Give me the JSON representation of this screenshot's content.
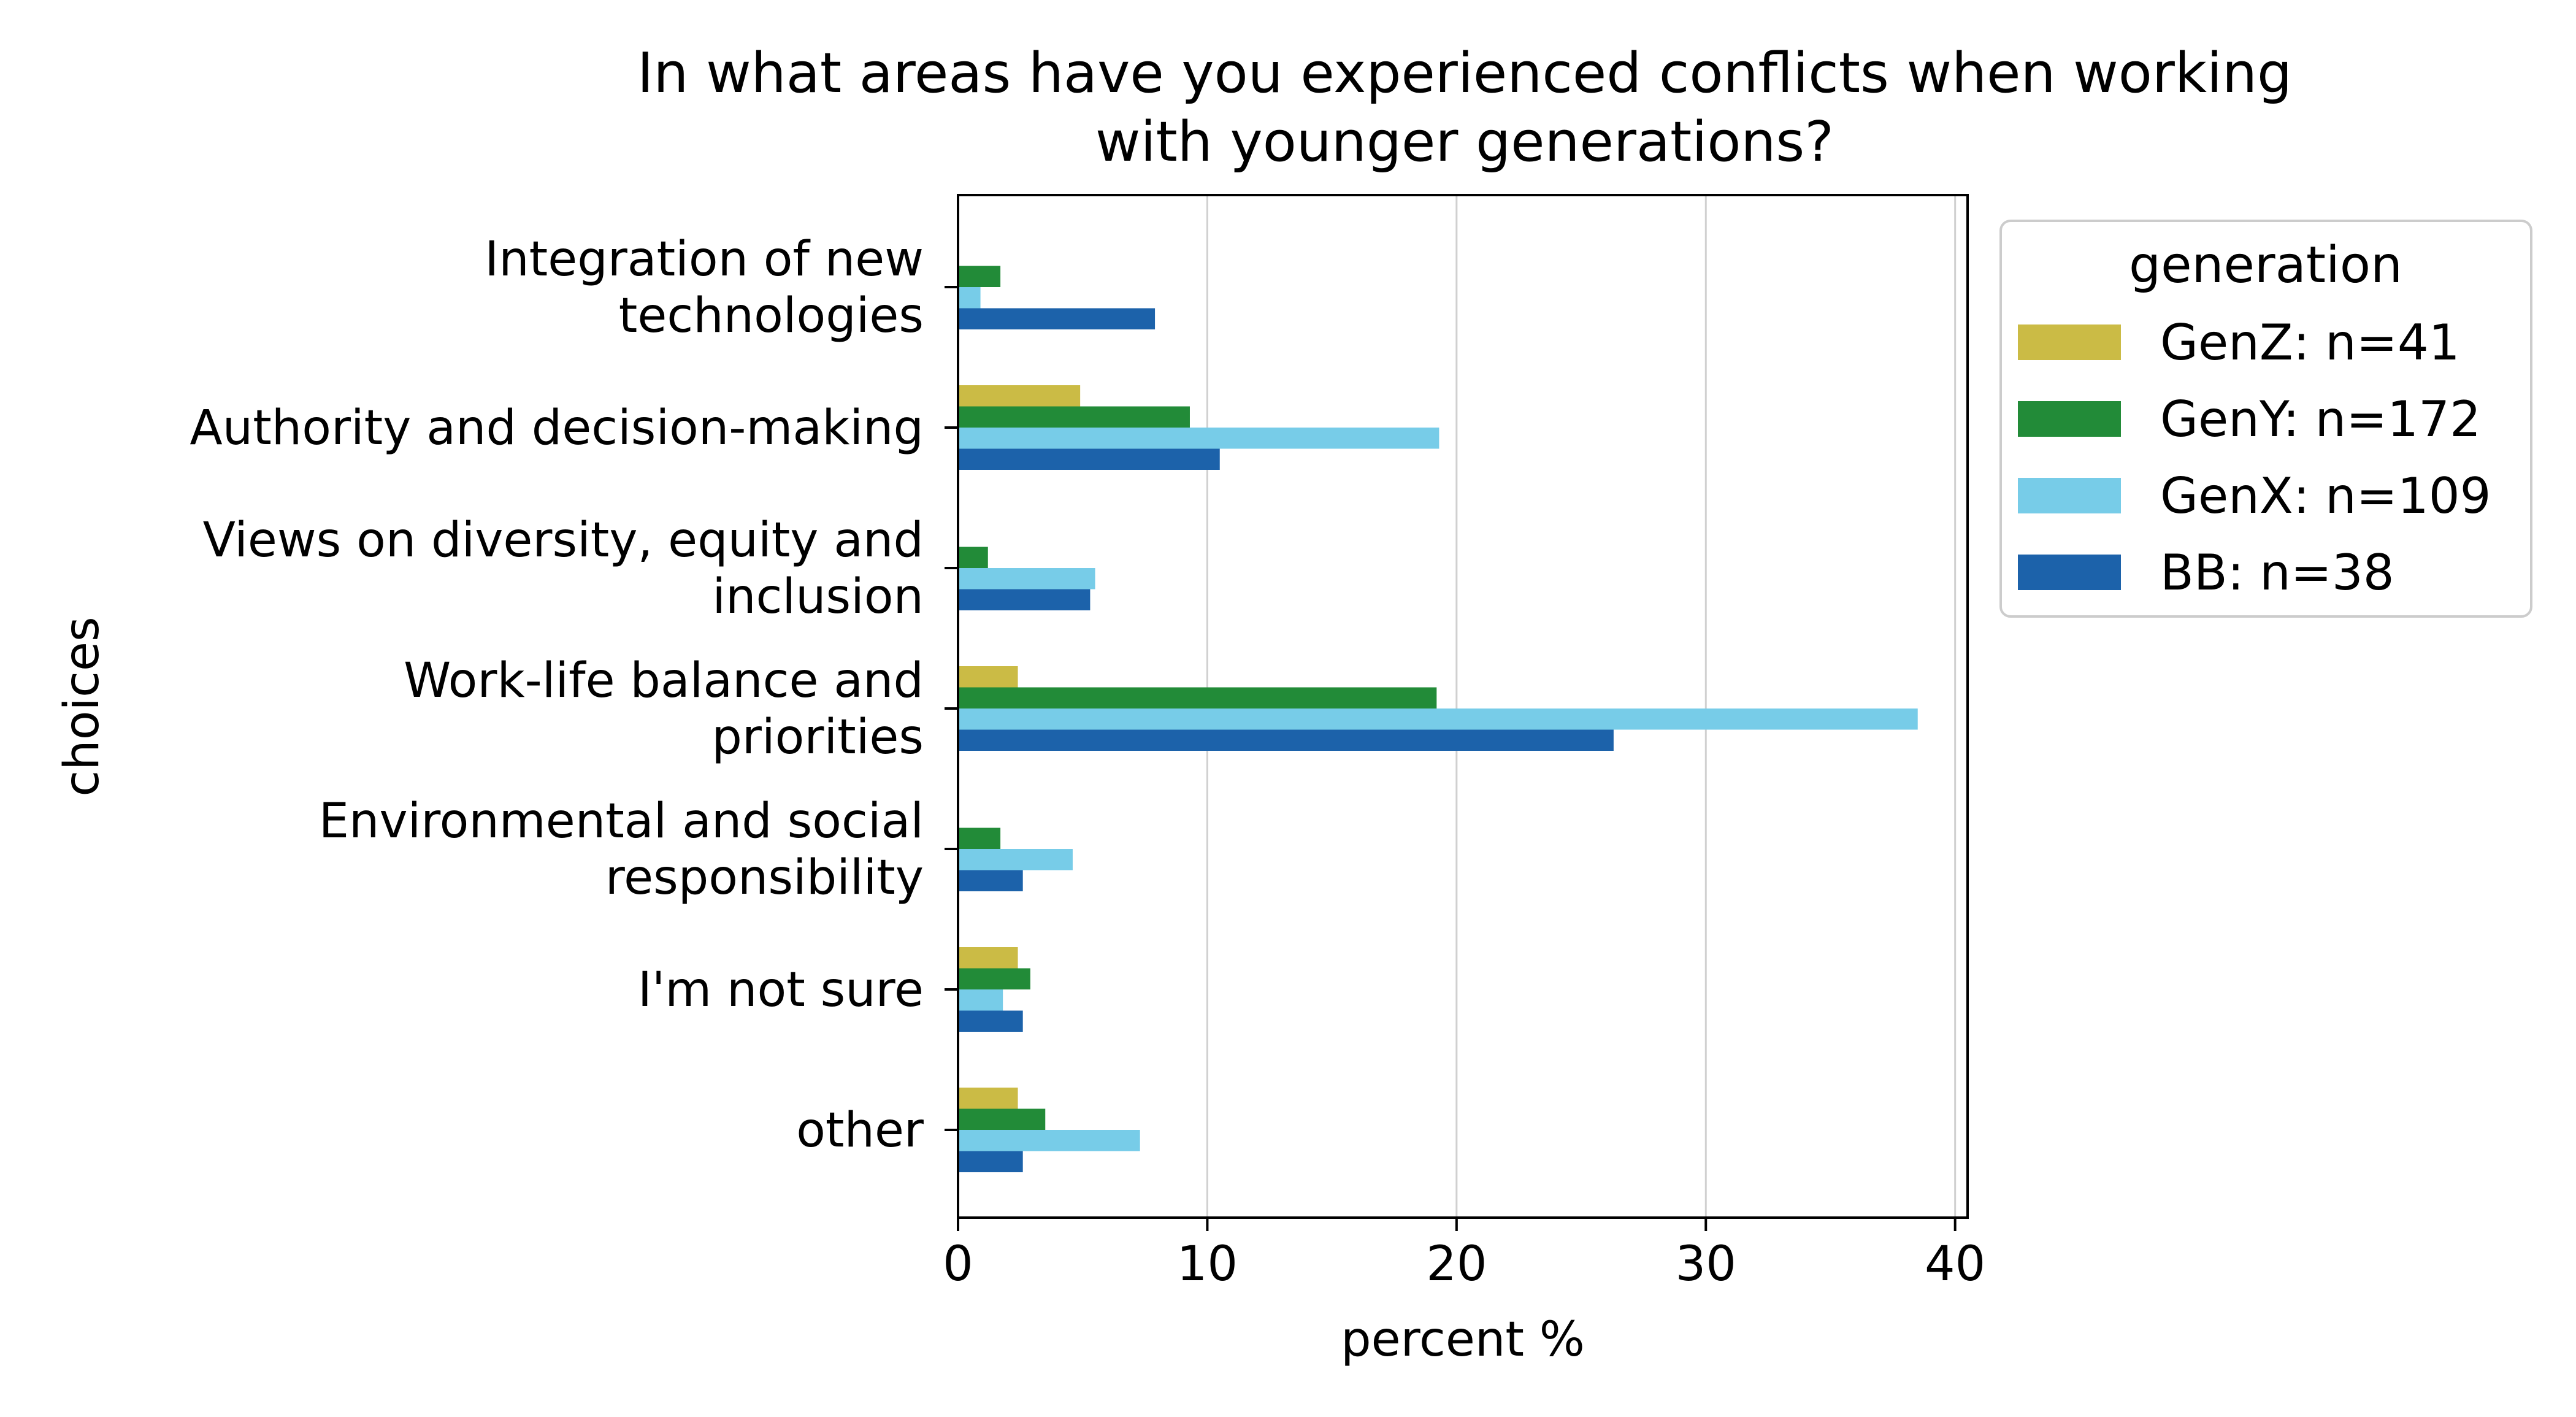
{
  "chart_data": {
    "type": "bar",
    "orientation": "horizontal",
    "title": [
      "In what areas have you experienced conflicts when working",
      "with younger generations?"
    ],
    "xlabel": "percent %",
    "ylabel": "choices",
    "xlim": [
      0,
      40.5
    ],
    "xticks": [
      0,
      10,
      20,
      30,
      40
    ],
    "grid": "vertical",
    "legend_title": "generation",
    "legend_position": "outside-right",
    "categories": [
      [
        "Integration of new",
        "technologies"
      ],
      [
        "Authority and decision-making"
      ],
      [
        "Views on diversity, equity and",
        "inclusion"
      ],
      [
        "Work-life balance and",
        "priorities"
      ],
      [
        "Environmental and social",
        "responsibility"
      ],
      [
        "I'm not sure"
      ],
      [
        "other"
      ]
    ],
    "series": [
      {
        "name": "GenZ: n=41",
        "color": "#CBBB45",
        "values": [
          0,
          4.9,
          0,
          2.4,
          0,
          2.4,
          2.4
        ]
      },
      {
        "name": "GenY: n=172",
        "color": "#228B38",
        "values": [
          1.7,
          9.3,
          1.2,
          19.2,
          1.7,
          2.9,
          3.5
        ]
      },
      {
        "name": "GenX: n=109",
        "color": "#77CCE8",
        "values": [
          0.9,
          19.3,
          5.5,
          38.5,
          4.6,
          1.8,
          7.3
        ]
      },
      {
        "name": "BB: n=38",
        "color": "#1C62AA",
        "values": [
          7.9,
          10.5,
          5.3,
          26.3,
          2.6,
          2.6,
          2.6
        ]
      }
    ]
  }
}
